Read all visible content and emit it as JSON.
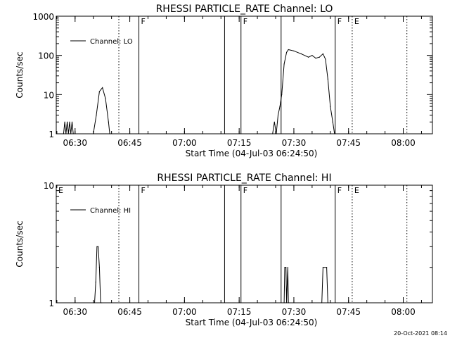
{
  "chart_data": [
    {
      "type": "line",
      "title": "RHESSI PARTICLE_RATE Channel: LO",
      "xlabel": "Start Time (04-Jul-03 06:24:50)",
      "ylabel": "Counts/sec",
      "yscale": "log",
      "ylim": [
        1,
        1000
      ],
      "xlim": [
        "06:24:50",
        "08:08:00"
      ],
      "x_ticks": [
        "06:30",
        "06:45",
        "07:00",
        "07:15",
        "07:30",
        "07:45",
        "08:00"
      ],
      "y_ticks": [
        "1",
        "10",
        "100",
        "1000"
      ],
      "legend": {
        "entries": [
          "Channel: LO"
        ],
        "placement": "top-left"
      },
      "grid": false,
      "events": [
        {
          "time": "06:42:00",
          "style": "dotted",
          "label": ""
        },
        {
          "time": "06:47:30",
          "style": "solid",
          "label": "F"
        },
        {
          "time": "07:11:00",
          "style": "solid",
          "label": ""
        },
        {
          "time": "07:15:30",
          "style": "solid",
          "label": "F"
        },
        {
          "time": "07:26:30",
          "style": "solid",
          "label": ""
        },
        {
          "time": "07:41:20",
          "style": "solid",
          "label": "F"
        },
        {
          "time": "07:46:00",
          "style": "dotted",
          "label": "E"
        },
        {
          "time": "08:01:00",
          "style": "dotted",
          "label": ""
        }
      ],
      "series": [
        {
          "name": "Channel: LO",
          "x": [
            "06:26:50",
            "06:27:10",
            "06:27:30",
            "06:27:50",
            "06:28:10",
            "06:28:30",
            "06:28:50",
            "06:29:10",
            "06:29:30",
            "06:35:00",
            "06:35:50",
            "06:36:40",
            "06:37:30",
            "06:38:20",
            "06:39:10",
            "06:39:30",
            "07:24:10",
            "07:24:40",
            "07:25:10",
            "07:25:40",
            "07:26:10",
            "07:26:40",
            "07:27:20",
            "07:28:00",
            "07:28:30",
            "07:30:00",
            "07:32:00",
            "07:34:00",
            "07:35:00",
            "07:36:00",
            "07:37:00",
            "07:38:00",
            "07:38:40",
            "07:39:20",
            "07:40:00",
            "07:40:40",
            "07:41:10"
          ],
          "values": [
            1,
            2,
            1,
            2,
            1,
            2,
            1,
            2,
            1,
            1,
            3,
            12,
            15,
            8,
            2,
            1,
            1,
            2,
            1,
            3,
            5,
            10,
            60,
            120,
            140,
            130,
            110,
            90,
            100,
            85,
            90,
            110,
            80,
            25,
            5,
            2,
            1
          ]
        }
      ]
    },
    {
      "type": "line",
      "title": "RHESSI PARTICLE_RATE Channel: HI",
      "xlabel": "Start Time (04-Jul-03 06:24:50)",
      "ylabel": "Counts/sec",
      "yscale": "log",
      "ylim": [
        1,
        10
      ],
      "xlim": [
        "06:24:50",
        "08:08:00"
      ],
      "x_ticks": [
        "06:30",
        "06:45",
        "07:00",
        "07:15",
        "07:30",
        "07:45",
        "08:00"
      ],
      "y_ticks": [
        "1",
        "10"
      ],
      "legend": {
        "entries": [
          "Channel: HI"
        ],
        "placement": "top-left"
      },
      "grid": false,
      "events": [
        {
          "time": "06:24:50",
          "style": "solid",
          "label": "E"
        },
        {
          "time": "06:42:00",
          "style": "dotted",
          "label": ""
        },
        {
          "time": "06:47:30",
          "style": "solid",
          "label": "F"
        },
        {
          "time": "07:11:00",
          "style": "solid",
          "label": ""
        },
        {
          "time": "07:15:30",
          "style": "solid",
          "label": "F"
        },
        {
          "time": "07:26:30",
          "style": "solid",
          "label": ""
        },
        {
          "time": "07:41:20",
          "style": "solid",
          "label": "F"
        },
        {
          "time": "07:46:00",
          "style": "dotted",
          "label": "E"
        },
        {
          "time": "08:01:00",
          "style": "dotted",
          "label": ""
        }
      ],
      "series": [
        {
          "name": "Channel: HI",
          "x": [
            "06:35:00",
            "06:35:20",
            "06:35:40",
            "06:36:00",
            "06:36:20",
            "06:36:40",
            "06:37:00",
            "06:37:20",
            "07:27:20",
            "07:27:30",
            "07:27:50",
            "07:28:00",
            "07:28:20",
            "07:28:30",
            "07:37:40",
            "07:38:00",
            "07:39:00",
            "07:39:20"
          ],
          "values": [
            1,
            1,
            1.5,
            3,
            3,
            2,
            1,
            1,
            1,
            2,
            2,
            1,
            2,
            1,
            1,
            2,
            2,
            1
          ]
        }
      ]
    }
  ],
  "timestamp": "20-Oct-2021 08:14"
}
